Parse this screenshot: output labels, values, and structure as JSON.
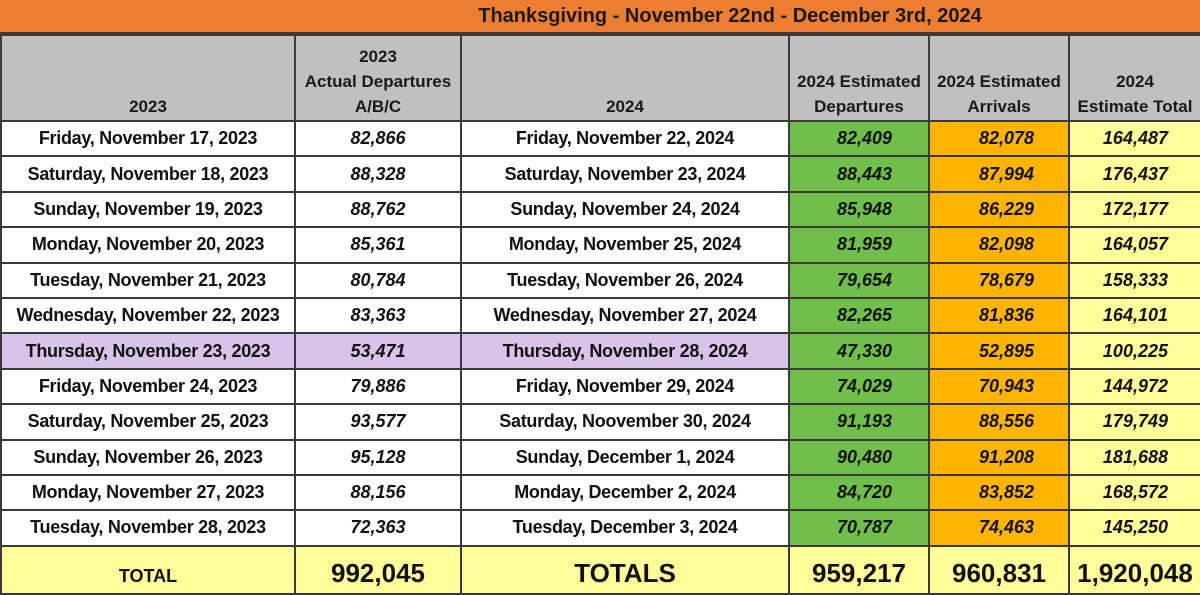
{
  "title": "Thanksgiving - November 22nd - December 3rd, 2024",
  "headers": {
    "col_2023": "2023",
    "col_2023_actual": [
      "2023",
      "Actual Departures",
      "A/B/C"
    ],
    "col_2024": "2024",
    "col_dep": [
      "2024 Estimated",
      "Departures"
    ],
    "col_arr": [
      "2024 Estimated",
      "Arrivals"
    ],
    "col_total": [
      "2024",
      "Estimate Total"
    ]
  },
  "rows": [
    {
      "d2023": "Friday, November 17, 2023",
      "a2023": "82,866",
      "d2024": "Friday, November 22, 2024",
      "dep": "82,409",
      "arr": "82,078",
      "tot": "164,487"
    },
    {
      "d2023": "Saturday, November 18, 2023",
      "a2023": "88,328",
      "d2024": "Saturday, November 23, 2024",
      "dep": "88,443",
      "arr": "87,994",
      "tot": "176,437"
    },
    {
      "d2023": "Sunday, November 19, 2023",
      "a2023": "88,762",
      "d2024": "Sunday, November 24, 2024",
      "dep": "85,948",
      "arr": "86,229",
      "tot": "172,177"
    },
    {
      "d2023": "Monday, November 20, 2023",
      "a2023": "85,361",
      "d2024": "Monday, November 25, 2024",
      "dep": "81,959",
      "arr": "82,098",
      "tot": "164,057"
    },
    {
      "d2023": "Tuesday, November 21, 2023",
      "a2023": "80,784",
      "d2024": "Tuesday, November 26, 2024",
      "dep": "79,654",
      "arr": "78,679",
      "tot": "158,333"
    },
    {
      "d2023": "Wednesday, November 22, 2023",
      "a2023": "83,363",
      "d2024": "Wednesday, November 27, 2024",
      "dep": "82,265",
      "arr": "81,836",
      "tot": "164,101"
    },
    {
      "d2023": "Thursday, November 23, 2023",
      "a2023": "53,471",
      "d2024": "Thursday, November 28, 2024",
      "dep": "47,330",
      "arr": "52,895",
      "tot": "100,225"
    },
    {
      "d2023": "Friday, November 24, 2023",
      "a2023": "79,886",
      "d2024": "Friday, November 29, 2024",
      "dep": "74,029",
      "arr": "70,943",
      "tot": "144,972"
    },
    {
      "d2023": "Saturday, November 25, 2023",
      "a2023": "93,577",
      "d2024": "Saturday, Noovember 30, 2024",
      "dep": "91,193",
      "arr": "88,556",
      "tot": "179,749"
    },
    {
      "d2023": "Sunday, November 26, 2023",
      "a2023": "95,128",
      "d2024": "Sunday, December 1, 2024",
      "dep": "90,480",
      "arr": "91,208",
      "tot": "181,688"
    },
    {
      "d2023": "Monday, November 27, 2023",
      "a2023": "88,156",
      "d2024": "Monday, December 2, 2024",
      "dep": "84,720",
      "arr": "83,852",
      "tot": "168,572"
    },
    {
      "d2023": "Tuesday, November 28, 2023",
      "a2023": "72,363",
      "d2024": "Tuesday, December 3, 2024",
      "dep": "70,787",
      "arr": "74,463",
      "tot": "145,250"
    }
  ],
  "totals": {
    "label_2023": "TOTAL",
    "a2023": "992,045",
    "label_2024": "TOTALS",
    "dep": "959,217",
    "arr": "960,831",
    "tot": "1,920,048"
  },
  "colors": {
    "title_bg": "#ed7d31",
    "header_bg": "#c0c0c0",
    "departures_bg": "#6fbf4a",
    "arrivals_bg": "#ffb400",
    "total_bg": "#ffff99",
    "thanksgiving_highlight": "#d9c3ea"
  }
}
